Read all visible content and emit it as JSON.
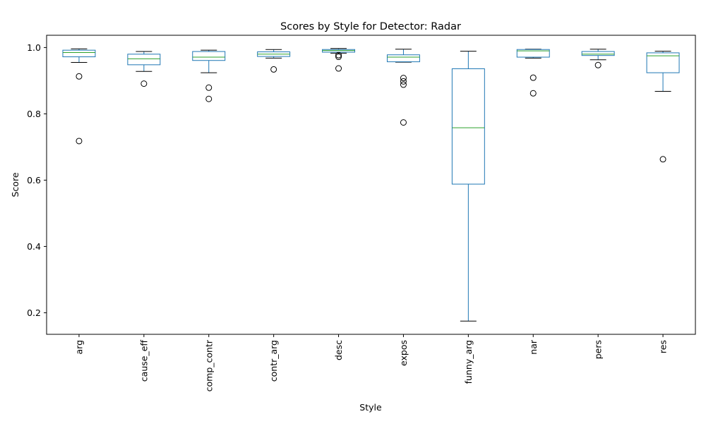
{
  "chart_data": {
    "type": "box",
    "title": "Scores by Style for Detector: Radar",
    "xlabel": "Style",
    "ylabel": "Score",
    "ylim": [
      0.135,
      1.037
    ],
    "yticks": [
      0.2,
      0.4,
      0.6,
      0.8,
      1.0
    ],
    "ytick_labels": [
      "0.2",
      "0.4",
      "0.6",
      "0.8",
      "1.0"
    ],
    "grid": false,
    "categories": [
      "arg",
      "cause_eff",
      "comp_contr",
      "contr_arg",
      "desc",
      "expos",
      "funny_arg",
      "nar",
      "pers",
      "res"
    ],
    "boxes": [
      {
        "label": "arg",
        "whisker_low": 0.955,
        "q1": 0.972,
        "median": 0.985,
        "q3": 0.992,
        "whisker_high": 0.996,
        "outliers": [
          0.913,
          0.718
        ]
      },
      {
        "label": "cause_eff",
        "whisker_low": 0.928,
        "q1": 0.948,
        "median": 0.966,
        "q3": 0.98,
        "whisker_high": 0.988,
        "outliers": [
          0.891
        ]
      },
      {
        "label": "comp_contr",
        "whisker_low": 0.924,
        "q1": 0.961,
        "median": 0.971,
        "q3": 0.988,
        "whisker_high": 0.992,
        "outliers": [
          0.879,
          0.845
        ]
      },
      {
        "label": "contr_arg",
        "whisker_low": 0.968,
        "q1": 0.973,
        "median": 0.98,
        "q3": 0.987,
        "whisker_high": 0.994,
        "outliers": [
          0.934
        ]
      },
      {
        "label": "desc",
        "whisker_low": 0.983,
        "q1": 0.986,
        "median": 0.991,
        "q3": 0.994,
        "whisker_high": 0.997,
        "outliers": [
          0.977,
          0.972,
          0.937
        ]
      },
      {
        "label": "expos",
        "whisker_low": 0.956,
        "q1": 0.957,
        "median": 0.971,
        "q3": 0.978,
        "whisker_high": 0.995,
        "outliers": [
          0.908,
          0.898,
          0.888,
          0.774
        ]
      },
      {
        "label": "funny_arg",
        "whisker_low": 0.175,
        "q1": 0.588,
        "median": 0.758,
        "q3": 0.936,
        "whisker_high": 0.989,
        "outliers": []
      },
      {
        "label": "nar",
        "whisker_low": 0.968,
        "q1": 0.971,
        "median": 0.99,
        "q3": 0.994,
        "whisker_high": 0.995,
        "outliers": [
          0.909,
          0.862
        ]
      },
      {
        "label": "pers",
        "whisker_low": 0.963,
        "q1": 0.976,
        "median": 0.98,
        "q3": 0.988,
        "whisker_high": 0.995,
        "outliers": [
          0.947
        ]
      },
      {
        "label": "res",
        "whisker_low": 0.868,
        "q1": 0.924,
        "median": 0.975,
        "q3": 0.984,
        "whisker_high": 0.989,
        "outliers": [
          0.663
        ]
      }
    ],
    "colors": {
      "box": "#1f77b4",
      "median": "#2ca02c",
      "whisker_cap": "#000000",
      "outlier": "#000000",
      "axes": "#000000"
    }
  }
}
